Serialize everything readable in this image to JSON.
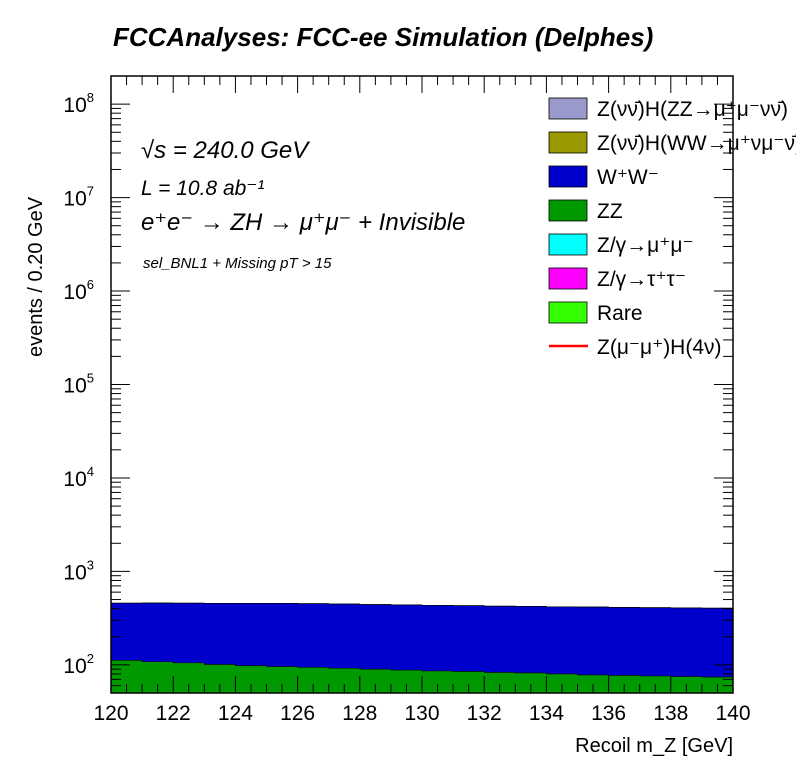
{
  "chart_data": {
    "type": "area",
    "title": "FCCAnalyses: FCC-ee Simulation (Delphes)",
    "xlabel": "Recoil m_Z [GeV]",
    "ylabel": "events / 0.20 GeV",
    "xlim": [
      120,
      140
    ],
    "ylim": [
      50,
      200000000
    ],
    "log_y": true,
    "stacked": true,
    "grid": false,
    "legend_position": "top-right",
    "x_ticks": [
      "120",
      "122",
      "124",
      "126",
      "128",
      "130",
      "132",
      "134",
      "136",
      "138",
      "140"
    ],
    "y_ticks": [
      {
        "base": "10",
        "exp": "2"
      },
      {
        "base": "10",
        "exp": "3"
      },
      {
        "base": "10",
        "exp": "4"
      },
      {
        "base": "10",
        "exp": "5"
      },
      {
        "base": "10",
        "exp": "6"
      },
      {
        "base": "10",
        "exp": "7"
      },
      {
        "base": "10",
        "exp": "8"
      }
    ],
    "annotations": {
      "sqrt_s": "√s = 240.0 GeV",
      "lumi": "L = 10.8 ab⁻¹",
      "process": "e⁺e⁻ → ZH → μ⁺μ⁻ + Invisible",
      "selection": "sel_BNL1 + Missing pT > 15"
    },
    "x": [
      120.5,
      121.5,
      122.5,
      123.5,
      124.5,
      125.5,
      126.5,
      127.5,
      128.5,
      129.5,
      130.5,
      131.5,
      132.5,
      133.5,
      134.5,
      135.5,
      136.5,
      137.5,
      138.5,
      139.5
    ],
    "series": [
      {
        "name": "Rare",
        "color": "#33ff00",
        "values": [
          0,
          0,
          0,
          0,
          0,
          0,
          0,
          0,
          0,
          0,
          0,
          0,
          0,
          0,
          0,
          0,
          0,
          0,
          0,
          0
        ]
      },
      {
        "name": "Z/γ→τ⁺τ⁻",
        "color": "#ff00ff",
        "values": [
          0,
          0,
          0,
          0,
          0,
          0,
          0,
          0,
          0,
          0,
          0,
          0,
          0,
          0,
          0,
          0,
          0,
          0,
          0,
          0
        ]
      },
      {
        "name": "Z/γ→μ⁺μ⁻",
        "color": "#00ffff",
        "values": [
          0,
          0,
          0,
          0,
          0,
          0,
          0,
          0,
          0,
          0,
          0,
          0,
          0,
          0,
          0,
          0,
          0,
          0,
          0,
          0
        ]
      },
      {
        "name": "ZZ",
        "color": "#009900",
        "values": [
          112,
          108,
          105,
          101,
          98,
          96,
          94,
          92,
          90,
          88,
          86,
          85,
          83,
          82,
          80,
          78,
          77,
          76,
          75,
          74
        ]
      },
      {
        "name": "W⁺W⁻",
        "color": "#0000cc",
        "values": [
          345,
          350,
          352,
          355,
          358,
          360,
          358,
          355,
          352,
          350,
          348,
          345,
          342,
          340,
          338,
          337,
          335,
          333,
          332,
          330
        ]
      },
      {
        "name": "Z(νν̄)H(WW→μ⁺νμ⁻ν̄)",
        "color": "#999900",
        "values": [
          0,
          0,
          0,
          0,
          0,
          0,
          0,
          0,
          0,
          0,
          0,
          0,
          0,
          0,
          0,
          0,
          0,
          0,
          0,
          0
        ]
      },
      {
        "name": "Z(νν̄)H(ZZ→μ⁺μ⁻νν̄)",
        "color": "#9999cc",
        "values": [
          0,
          0,
          0,
          0,
          0,
          0,
          0,
          0,
          0,
          0,
          0,
          0,
          0,
          0,
          0,
          0,
          0,
          0,
          0,
          0
        ]
      }
    ],
    "overlay": {
      "name": "Z(μ⁻μ⁺)H(4ν)",
      "color": "#ff0000",
      "values": [
        0,
        0,
        0,
        0,
        0,
        0,
        0,
        0,
        0,
        0,
        0,
        0,
        0,
        0,
        0,
        0,
        0,
        0,
        0,
        0
      ]
    },
    "legend": [
      {
        "label": "Z(νν̄)H(ZZ→μ⁺μ⁻νν̄)",
        "color": "#9999cc",
        "style": "box"
      },
      {
        "label": "Z(νν̄)H(WW→μ⁺νμ⁻ν̄)",
        "color": "#999900",
        "style": "box"
      },
      {
        "label": "W⁺W⁻",
        "color": "#0000cc",
        "style": "box"
      },
      {
        "label": "ZZ",
        "color": "#009900",
        "style": "box"
      },
      {
        "label": "Z/γ→μ⁺μ⁻",
        "color": "#00ffff",
        "style": "box"
      },
      {
        "label": "Z/γ→τ⁺τ⁻",
        "color": "#ff00ff",
        "style": "box"
      },
      {
        "label": "Rare",
        "color": "#33ff00",
        "style": "box"
      },
      {
        "label": "Z(μ⁻μ⁺)H(4ν)",
        "color": "#ff0000",
        "style": "line"
      }
    ]
  }
}
